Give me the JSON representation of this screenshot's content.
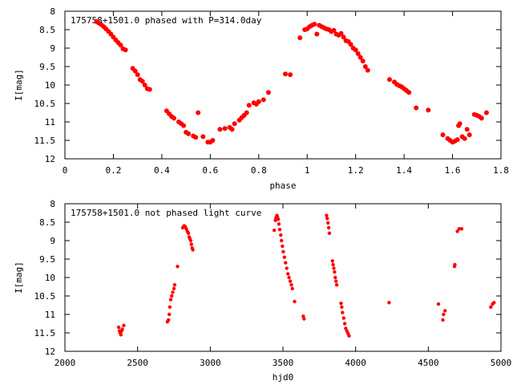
{
  "chart_data": [
    {
      "type": "scatter",
      "title": "175758+1501.0 phased with P=314.0day",
      "xlabel": "phase",
      "ylabel": "I[mag]",
      "xlim": [
        0,
        1.8
      ],
      "ylim": [
        8,
        12
      ],
      "y_inverted": true,
      "xticks": [
        "0",
        "0.2",
        "0.4",
        "0.6",
        "0.8",
        "1",
        "1.2",
        "1.4",
        "1.6",
        "1.8"
      ],
      "yticks": [
        "8",
        "8.5",
        "9",
        "9.5",
        "10",
        "10.5",
        "11",
        "11.5",
        "12"
      ],
      "grid": false,
      "marker_color": "#ff0000",
      "series": [
        {
          "points": [
            [
              0.13,
              8.28
            ],
            [
              0.14,
              8.32
            ],
            [
              0.15,
              8.36
            ],
            [
              0.16,
              8.42
            ],
            [
              0.17,
              8.48
            ],
            [
              0.18,
              8.55
            ],
            [
              0.19,
              8.62
            ],
            [
              0.2,
              8.7
            ],
            [
              0.21,
              8.78
            ],
            [
              0.22,
              8.85
            ],
            [
              0.23,
              8.92
            ],
            [
              0.24,
              9.02
            ],
            [
              0.25,
              9.05
            ],
            [
              0.28,
              9.55
            ],
            [
              0.29,
              9.62
            ],
            [
              0.3,
              9.72
            ],
            [
              0.31,
              9.85
            ],
            [
              0.32,
              9.9
            ],
            [
              0.33,
              10.0
            ],
            [
              0.34,
              10.1
            ],
            [
              0.35,
              10.12
            ],
            [
              0.42,
              10.7
            ],
            [
              0.43,
              10.78
            ],
            [
              0.44,
              10.85
            ],
            [
              0.45,
              10.9
            ],
            [
              0.47,
              11.0
            ],
            [
              0.48,
              11.05
            ],
            [
              0.49,
              11.1
            ],
            [
              0.5,
              11.28
            ],
            [
              0.51,
              11.32
            ],
            [
              0.53,
              11.38
            ],
            [
              0.54,
              11.42
            ],
            [
              0.55,
              10.75
            ],
            [
              0.57,
              11.4
            ],
            [
              0.59,
              11.55
            ],
            [
              0.6,
              11.55
            ],
            [
              0.61,
              11.5
            ],
            [
              0.64,
              11.2
            ],
            [
              0.66,
              11.18
            ],
            [
              0.68,
              11.15
            ],
            [
              0.69,
              11.2
            ],
            [
              0.7,
              11.05
            ],
            [
              0.72,
              10.95
            ],
            [
              0.73,
              10.88
            ],
            [
              0.74,
              10.82
            ],
            [
              0.75,
              10.75
            ],
            [
              0.76,
              10.55
            ],
            [
              0.78,
              10.48
            ],
            [
              0.79,
              10.52
            ],
            [
              0.8,
              10.45
            ],
            [
              0.82,
              10.4
            ],
            [
              0.84,
              10.2
            ],
            [
              0.91,
              9.7
            ],
            [
              0.93,
              9.72
            ],
            [
              0.97,
              8.72
            ],
            [
              0.99,
              8.5
            ],
            [
              1.0,
              8.48
            ],
            [
              1.01,
              8.42
            ],
            [
              1.02,
              8.38
            ],
            [
              1.03,
              8.35
            ],
            [
              1.04,
              8.62
            ],
            [
              1.05,
              8.38
            ],
            [
              1.06,
              8.42
            ],
            [
              1.07,
              8.45
            ],
            [
              1.08,
              8.48
            ],
            [
              1.09,
              8.5
            ],
            [
              1.1,
              8.55
            ],
            [
              1.11,
              8.52
            ],
            [
              1.12,
              8.62
            ],
            [
              1.13,
              8.65
            ],
            [
              1.14,
              8.6
            ],
            [
              1.15,
              8.7
            ],
            [
              1.16,
              8.8
            ],
            [
              1.17,
              8.82
            ],
            [
              1.18,
              8.9
            ],
            [
              1.19,
              9.0
            ],
            [
              1.2,
              9.05
            ],
            [
              1.21,
              9.15
            ],
            [
              1.22,
              9.25
            ],
            [
              1.23,
              9.35
            ],
            [
              1.24,
              9.5
            ],
            [
              1.25,
              9.6
            ],
            [
              1.34,
              9.85
            ],
            [
              1.36,
              9.92
            ],
            [
              1.37,
              9.98
            ],
            [
              1.38,
              10.02
            ],
            [
              1.39,
              10.05
            ],
            [
              1.4,
              10.1
            ],
            [
              1.41,
              10.15
            ],
            [
              1.42,
              10.2
            ],
            [
              1.45,
              10.62
            ],
            [
              1.5,
              10.68
            ],
            [
              1.56,
              11.35
            ],
            [
              1.58,
              11.45
            ],
            [
              1.59,
              11.5
            ],
            [
              1.6,
              11.55
            ],
            [
              1.61,
              11.52
            ],
            [
              1.62,
              11.48
            ],
            [
              1.625,
              11.1
            ],
            [
              1.63,
              11.05
            ],
            [
              1.64,
              11.4
            ],
            [
              1.65,
              11.45
            ],
            [
              1.66,
              11.2
            ],
            [
              1.67,
              11.35
            ],
            [
              1.69,
              10.8
            ],
            [
              1.7,
              10.82
            ],
            [
              1.71,
              10.85
            ],
            [
              1.72,
              10.9
            ],
            [
              1.74,
              10.75
            ]
          ]
        }
      ]
    },
    {
      "type": "scatter",
      "title": "175758+1501.0 not phased light curve",
      "xlabel": "hjd0",
      "ylabel": "I[mag]",
      "xlim": [
        2000,
        5000
      ],
      "ylim": [
        8,
        12
      ],
      "y_inverted": true,
      "xticks": [
        "2000",
        "2500",
        "3000",
        "3500",
        "4000",
        "4500",
        "5000"
      ],
      "yticks": [
        "8",
        "8.5",
        "9",
        "9.5",
        "10",
        "10.5",
        "11",
        "11.5",
        "12"
      ],
      "grid": false,
      "marker_color": "#ff0000",
      "series": [
        {
          "points": [
            [
              2370,
              11.35
            ],
            [
              2375,
              11.45
            ],
            [
              2380,
              11.5
            ],
            [
              2385,
              11.55
            ],
            [
              2390,
              11.45
            ],
            [
              2395,
              11.4
            ],
            [
              2405,
              11.3
            ],
            [
              2705,
              11.2
            ],
            [
              2712,
              11.15
            ],
            [
              2718,
              11.0
            ],
            [
              2722,
              10.8
            ],
            [
              2728,
              10.6
            ],
            [
              2735,
              10.5
            ],
            [
              2742,
              10.4
            ],
            [
              2750,
              10.3
            ],
            [
              2755,
              10.2
            ],
            [
              2775,
              9.7
            ],
            [
              2810,
              8.65
            ],
            [
              2820,
              8.6
            ],
            [
              2828,
              8.62
            ],
            [
              2835,
              8.68
            ],
            [
              2842,
              8.75
            ],
            [
              2850,
              8.8
            ],
            [
              2855,
              8.9
            ],
            [
              2860,
              8.95
            ],
            [
              2865,
              9.0
            ],
            [
              2870,
              9.1
            ],
            [
              2875,
              9.2
            ],
            [
              2880,
              9.25
            ],
            [
              3440,
              8.72
            ],
            [
              3448,
              8.45
            ],
            [
              3452,
              8.38
            ],
            [
              3458,
              8.32
            ],
            [
              3462,
              8.35
            ],
            [
              3468,
              8.42
            ],
            [
              3472,
              8.55
            ],
            [
              3478,
              8.7
            ],
            [
              3485,
              8.85
            ],
            [
              3490,
              9.0
            ],
            [
              3496,
              9.15
            ],
            [
              3502,
              9.3
            ],
            [
              3510,
              9.45
            ],
            [
              3518,
              9.6
            ],
            [
              3526,
              9.75
            ],
            [
              3534,
              9.9
            ],
            [
              3542,
              10.0
            ],
            [
              3550,
              10.1
            ],
            [
              3558,
              10.2
            ],
            [
              3565,
              10.3
            ],
            [
              3580,
              10.65
            ],
            [
              3640,
              11.05
            ],
            [
              3645,
              11.12
            ],
            [
              3800,
              8.32
            ],
            [
              3805,
              8.4
            ],
            [
              3810,
              8.52
            ],
            [
              3815,
              8.65
            ],
            [
              3820,
              8.8
            ],
            [
              3840,
              9.55
            ],
            [
              3845,
              9.65
            ],
            [
              3850,
              9.75
            ],
            [
              3855,
              9.85
            ],
            [
              3860,
              10.0
            ],
            [
              3865,
              10.1
            ],
            [
              3870,
              10.2
            ],
            [
              3900,
              10.7
            ],
            [
              3905,
              10.8
            ],
            [
              3910,
              10.95
            ],
            [
              3918,
              11.1
            ],
            [
              3925,
              11.25
            ],
            [
              3932,
              11.38
            ],
            [
              3940,
              11.45
            ],
            [
              3948,
              11.52
            ],
            [
              3955,
              11.58
            ],
            [
              4230,
              10.68
            ],
            [
              4570,
              10.72
            ],
            [
              4600,
              11.15
            ],
            [
              4605,
              11.0
            ],
            [
              4615,
              10.9
            ],
            [
              4680,
              9.7
            ],
            [
              4683,
              9.65
            ],
            [
              4700,
              8.75
            ],
            [
              4712,
              8.68
            ],
            [
              4730,
              8.68
            ],
            [
              4930,
              10.8
            ],
            [
              4942,
              10.72
            ],
            [
              4952,
              10.68
            ]
          ]
        }
      ]
    }
  ]
}
